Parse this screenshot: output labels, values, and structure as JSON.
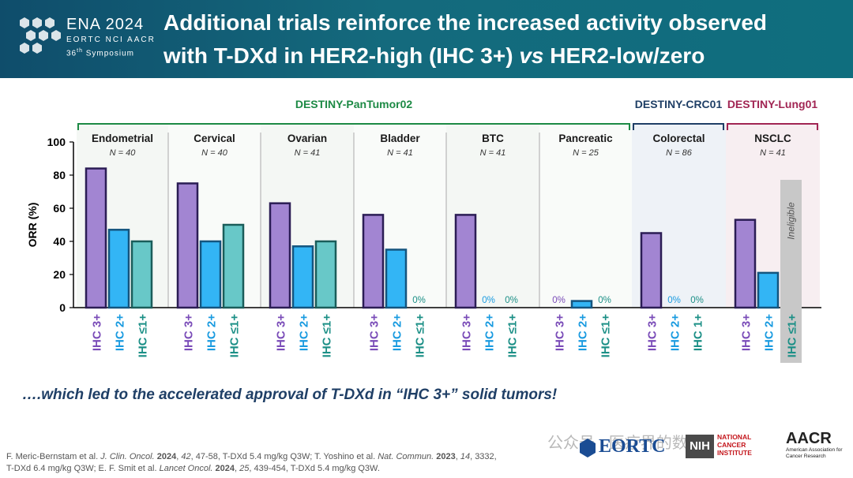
{
  "header": {
    "logo": {
      "title": "ENA 2024",
      "orgs": "EORTC NCI AACR",
      "symposium_prefix": "36",
      "symposium_sup": "th",
      "symposium_suffix": " Symposium"
    },
    "title_line1": "Additional trials reinforce the increased activity observed",
    "title_line2_start": "with T-DXd in HER2-high (IHC 3+) ",
    "title_line2_vs": "vs",
    "title_line2_end": " HER2-low/zero"
  },
  "colors": {
    "header_bg": "#0f5f76",
    "ihc3": "#a285d2",
    "ihc2": "#33b5f5",
    "ihcle1": "#68c8c8",
    "pantumor": "#1d8a45",
    "crc": "#1f3f66",
    "lung": "#a12553",
    "ineligible": "#c8c8c8"
  },
  "chart_data": {
    "type": "bar",
    "ylabel": "ORR (%)",
    "ylim": [
      0,
      100
    ],
    "yticks": [
      0,
      20,
      40,
      60,
      80,
      100
    ],
    "legend_note": "Ineligible",
    "trials": [
      {
        "name": "DESTINY-PanTumor02",
        "color": "#1d8a45",
        "groups": [
          0,
          1,
          2,
          3,
          4,
          5
        ]
      },
      {
        "name": "DESTINY-CRC01",
        "color": "#1f3f66",
        "groups": [
          6
        ]
      },
      {
        "name": "DESTINY-Lung01",
        "color": "#a12553",
        "groups": [
          7
        ]
      }
    ],
    "groups": [
      {
        "name": "Endometrial",
        "n": "N = 40",
        "bars": [
          {
            "label": "IHC 3+",
            "value": 84,
            "kind": "ihc3"
          },
          {
            "label": "IHC 2+",
            "value": 47,
            "kind": "ihc2"
          },
          {
            "label": "IHC ≤1+",
            "value": 40,
            "kind": "ihcle1"
          }
        ]
      },
      {
        "name": "Cervical",
        "n": "N = 40",
        "bars": [
          {
            "label": "IHC 3+",
            "value": 75,
            "kind": "ihc3"
          },
          {
            "label": "IHC 2+",
            "value": 40,
            "kind": "ihc2"
          },
          {
            "label": "IHC ≤1+",
            "value": 50,
            "kind": "ihcle1"
          }
        ]
      },
      {
        "name": "Ovarian",
        "n": "N = 41",
        "bars": [
          {
            "label": "IHC 3+",
            "value": 63,
            "kind": "ihc3"
          },
          {
            "label": "IHC 2+",
            "value": 37,
            "kind": "ihc2"
          },
          {
            "label": "IHC ≤1+",
            "value": 40,
            "kind": "ihcle1"
          }
        ]
      },
      {
        "name": "Bladder",
        "n": "N = 41",
        "bars": [
          {
            "label": "IHC 3+",
            "value": 56,
            "kind": "ihc3"
          },
          {
            "label": "IHC 2+",
            "value": 35,
            "kind": "ihc2"
          },
          {
            "label": "IHC ≤1+",
            "value": 0,
            "kind": "ihcle1",
            "value_label": "0%"
          }
        ]
      },
      {
        "name": "BTC",
        "n": "N = 41",
        "bars": [
          {
            "label": "IHC 3+",
            "value": 56,
            "kind": "ihc3"
          },
          {
            "label": "IHC 2+",
            "value": 0,
            "kind": "ihc2",
            "value_label": "0%"
          },
          {
            "label": "IHC ≤1+",
            "value": 0,
            "kind": "ihcle1",
            "value_label": "0%"
          }
        ]
      },
      {
        "name": "Pancreatic",
        "n": "N = 25",
        "bars": [
          {
            "label": "IHC 3+",
            "value": 0,
            "kind": "ihc3",
            "value_label": "0%"
          },
          {
            "label": "IHC 2+",
            "value": 4,
            "kind": "ihc2"
          },
          {
            "label": "IHC ≤1+",
            "value": 0,
            "kind": "ihcle1",
            "value_label": "0%"
          }
        ]
      },
      {
        "name": "Colorectal",
        "n": "N = 86",
        "bars": [
          {
            "label": "IHC 3+",
            "value": 45,
            "kind": "ihc3"
          },
          {
            "label": "IHC 2+",
            "value": 0,
            "kind": "ihc2",
            "value_label": "0%"
          },
          {
            "label": "IHC 1+",
            "value": 0,
            "kind": "ihcle1",
            "value_label": "0%"
          }
        ]
      },
      {
        "name": "NSCLC",
        "n": "N = 41",
        "bars": [
          {
            "label": "IHC 3+",
            "value": 53,
            "kind": "ihc3"
          },
          {
            "label": "IHC 2+",
            "value": 21,
            "kind": "ihc2"
          },
          {
            "label": "IHC ≤1+",
            "value": null,
            "kind": "ineligible"
          }
        ]
      }
    ]
  },
  "tagline": "….which led to the accelerated approval of T-DXd in “IHC 3+” solid tumors!",
  "references": {
    "ref1_authors": "F. Meric-Bernstam et al. ",
    "ref1_journal": "J. Clin. Oncol.",
    "ref1_year": "2024",
    "ref1_vol": "42",
    "ref1_rest": ", 47-58, T-DXd 5.4 mg/kg Q3W; T. Yoshino et al. ",
    "ref2_journal": "Nat. Commun.",
    "ref2_year": "2023",
    "ref2_vol": "14",
    "ref2_rest": ", 3332,",
    "line2_start": "T-DXd 6.4 mg/kg Q3W; E. F. Smit et al. ",
    "ref3_journal": "Lancet Oncol.",
    "ref3_year": "2024",
    "ref3_vol": "25",
    "ref3_rest": ", 439-454, T-DXd 5.4 mg/kg Q3W."
  },
  "footer_logos": {
    "watermark": "公众号 · 医疗界的数",
    "eortc": "EORTC",
    "nih": "NIH",
    "nih_name": "NATIONAL CANCER INSTITUTE",
    "aacr": "AACR",
    "aacr_sub": "American Association for Cancer Research"
  }
}
